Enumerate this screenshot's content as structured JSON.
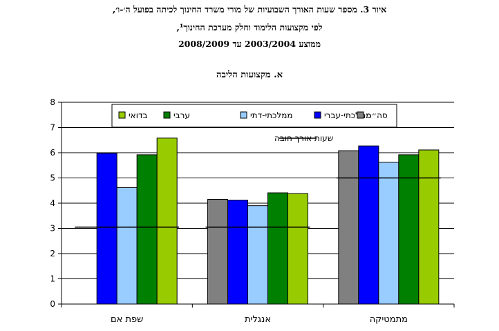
{
  "header": {
    "title_line1": "איור 3. מספר שעות האורך השבועיות של מורי משרד החינוך לכיתה בפועל ה׳-ו׳,",
    "title_line2": "לפי מקצועות הלימוד וחלק מערכת החינוך¹,",
    "title_line3": "ממוצע 2003/2004 עד 2008/2009"
  },
  "chart_data": {
    "type": "bar",
    "title": "א. מקצועות הליבה",
    "categories": [
      "שפת אם",
      "אנגלית",
      "מתמטיקה"
    ],
    "ylim": [
      0,
      8
    ],
    "yticks": [
      0,
      1,
      2,
      3,
      4,
      5,
      6,
      7,
      8
    ],
    "grid": true,
    "legend_position": "top",
    "series": [
      {
        "name": "סה״כ",
        "color": "#808080",
        "values": [
          null,
          4.15,
          6.08
        ]
      },
      {
        "name": "ממלכתי-עברי",
        "color": "#0000ff",
        "values": [
          5.98,
          4.12,
          6.27
        ]
      },
      {
        "name": "ממלכתי-דתי",
        "color": "#99ccff",
        "values": [
          4.62,
          3.9,
          5.62
        ]
      },
      {
        "name": "ערבי",
        "color": "#008000",
        "values": [
          5.92,
          4.41,
          5.92
        ]
      },
      {
        "name": "בדואי",
        "color": "#99cc00",
        "values": [
          6.58,
          4.38,
          6.11
        ]
      }
    ],
    "reference_line": {
      "name": "שעות אורך חובה",
      "color": "#000000",
      "values": [
        3.05,
        3.05,
        5.0
      ]
    }
  }
}
